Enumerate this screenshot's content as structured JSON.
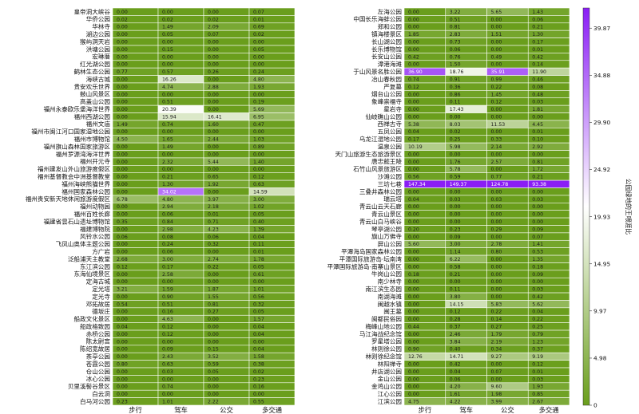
{
  "chart_data": {
    "type": "heatmap",
    "columns": [
      "步行",
      "驾车",
      "公交",
      "多交通"
    ],
    "colorbar": {
      "label": "公园绿地的王喂涯比",
      "ticks": [
        "0",
        "4.98",
        "9.97",
        "14.95",
        "19.93",
        "24.92",
        "29.90",
        "34.88",
        "39.87"
      ],
      "tick_values": [
        0,
        4.98,
        9.97,
        14.95,
        19.93,
        24.92,
        29.9,
        34.88,
        39.87
      ],
      "range": [
        0,
        42
      ],
      "colors": [
        "#6a9e1c",
        "#ffffff",
        "#8a1ef5"
      ]
    },
    "panels": [
      {
        "rows": [
          {
            "name": "皇帝洞大峡谷",
            "values": [
              "0.00",
              "0.00",
              "0.00",
              "0.07"
            ]
          },
          {
            "name": "华侨公园",
            "values": [
              "0.02",
              "0.02",
              "0.02",
              "0.01"
            ]
          },
          {
            "name": "华林寺",
            "values": [
              "0.00",
              "1.49",
              "2.09",
              "0.69"
            ]
          },
          {
            "name": "湖边公园",
            "values": [
              "0.00",
              "0.05",
              "0.07",
              "0.02"
            ]
          },
          {
            "name": "猴屿洞天岩",
            "values": [
              "0.00",
              "0.00",
              "0.00",
              "0.00"
            ]
          },
          {
            "name": "洪塘公园",
            "values": [
              "0.00",
              "0.15",
              "0.00",
              "0.05"
            ]
          },
          {
            "name": "宏琳厝",
            "values": [
              "0.00",
              "0.00",
              "0.00",
              "0.00"
            ]
          },
          {
            "name": "红光湖公园",
            "values": [
              "0.00",
              "0.00",
              "0.00",
              "0.00"
            ]
          },
          {
            "name": "鹤林生态公园",
            "values": [
              "0.77",
              "0.57",
              "0.26",
              "0.24"
            ]
          },
          {
            "name": "海峡古城",
            "values": [
              "0.00",
              "16.26",
              "0.00",
              "4.80"
            ]
          },
          {
            "name": "贵安欢乐世界",
            "values": [
              "0.00",
              "4.74",
              "2.88",
              "1.93"
            ]
          },
          {
            "name": "鼓山风景区",
            "values": [
              "0.00",
              "0.00",
              "0.00",
              "0.00"
            ]
          },
          {
            "name": "高盖山公园",
            "values": [
              "0.00",
              "0.51",
              "0.00",
              "0.19"
            ]
          },
          {
            "name": "福州永泰欧乐堡海洋世界",
            "values": [
              "0.00",
              "20.39",
              "0.00",
              "5.69"
            ]
          },
          {
            "name": "福州西湖公园",
            "values": [
              "0.00",
              "15.94",
              "16.41",
              "6.95"
            ]
          },
          {
            "name": "福州文庙",
            "values": [
              "1.49",
              "0.74",
              "1.60",
              "0.47"
            ]
          },
          {
            "name": "福州市闽江河口国家湿地公园",
            "values": [
              "0.00",
              "0.00",
              "0.00",
              "0.00"
            ]
          },
          {
            "name": "福州市博物馆",
            "values": [
              "4.50",
              "1.65",
              "2.44",
              "1.03"
            ]
          },
          {
            "name": "福州旗山森林国家旅游区",
            "values": [
              "0.00",
              "1.49",
              "0.00",
              "0.89"
            ]
          },
          {
            "name": "福州罗源湾海洋世界",
            "values": [
              "0.00",
              "0.00",
              "0.00",
              "0.00"
            ]
          },
          {
            "name": "福州开元寺",
            "values": [
              "0.00",
              "2.32",
              "5.44",
              "1.40"
            ]
          },
          {
            "name": "福州建发山外山旅游度假区",
            "values": [
              "0.00",
              "0.00",
              "0.00",
              "0.00"
            ]
          },
          {
            "name": "福州基督教会中洲基督教堂",
            "values": [
              "0.00",
              "0.21",
              "0.65",
              "0.12"
            ]
          },
          {
            "name": "福州海峡熊猫世界",
            "values": [
              "0.00",
              "1.30",
              "1.92",
              "0.63"
            ]
          },
          {
            "name": "福州国家森林公园",
            "values": [
              "0.00",
              "34.02",
              "0.00",
              "14.59"
            ]
          },
          {
            "name": "福州贵安新天地休闲旅游度假区",
            "values": [
              "6.78",
              "4.80",
              "3.97",
              "3.00"
            ]
          },
          {
            "name": "福州动物园",
            "values": [
              "0.00",
              "2.94",
              "2.18",
              "1.02"
            ]
          },
          {
            "name": "福州百姓长廊",
            "values": [
              "0.00",
              "0.06",
              "0.01",
              "0.05"
            ]
          },
          {
            "name": "福建省昙石山遗址博物馆",
            "values": [
              "0.35",
              "0.84",
              "0.71",
              "0.40"
            ]
          },
          {
            "name": "福建博物院",
            "values": [
              "0.00",
              "2.98",
              "4.23",
              "1.39"
            ]
          },
          {
            "name": "风铃水公园",
            "values": [
              "0.06",
              "0.08",
              "0.06",
              "0.04"
            ]
          },
          {
            "name": "飞凤山奥体主题公园",
            "values": [
              "0.00",
              "0.24",
              "0.32",
              "0.11"
            ]
          },
          {
            "name": "方广岩",
            "values": [
              "0.00",
              "0.06",
              "0.00",
              "0.01"
            ]
          },
          {
            "name": "泛船浦天主教堂",
            "values": [
              "2.68",
              "3.00",
              "2.74",
              "1.78"
            ]
          },
          {
            "name": "东江滨公园",
            "values": [
              "0.12",
              "0.17",
              "0.22",
              "0.05"
            ]
          },
          {
            "name": "东海仙境景区",
            "values": [
              "0.00",
              "2.58",
              "0.00",
              "0.61"
            ]
          },
          {
            "name": "定海古城",
            "values": [
              "0.00",
              "0.00",
              "0.00",
              "0.00"
            ]
          },
          {
            "name": "定光塔",
            "values": [
              "3.21",
              "1.59",
              "1.87",
              "1.01"
            ]
          },
          {
            "name": "定光寺",
            "values": [
              "0.00",
              "0.90",
              "1.55",
              "0.56"
            ]
          },
          {
            "name": "邓拓故居",
            "values": [
              "0.54",
              "0.51",
              "0.81",
              "0.32"
            ]
          },
          {
            "name": "德坂庄",
            "values": [
              "0.00",
              "0.16",
              "0.27",
              "0.05"
            ]
          },
          {
            "name": "船政文化景区",
            "values": [
              "0.00",
              "4.63",
              "0.00",
              "1.57"
            ]
          },
          {
            "name": "船政格致园",
            "values": [
              "0.04",
              "0.12",
              "0.00",
              "0.04"
            ]
          },
          {
            "name": "赤桥公园",
            "values": [
              "0.00",
              "0.12",
              "0.00",
              "0.04"
            ]
          },
          {
            "name": "陈太尉宫",
            "values": [
              "0.00",
              "0.00",
              "0.00",
              "0.00"
            ]
          },
          {
            "name": "陈绍宽故居",
            "values": [
              "0.00",
              "0.09",
              "0.15",
              "0.04"
            ]
          },
          {
            "name": "茶亭公园",
            "values": [
              "0.00",
              "2.43",
              "3.52",
              "1.58"
            ]
          },
          {
            "name": "苍霞公园",
            "values": [
              "0.80",
              "0.63",
              "0.59",
              "0.38"
            ]
          },
          {
            "name": "仓山公园",
            "values": [
              "0.00",
              "0.03",
              "0.05",
              "0.02"
            ]
          },
          {
            "name": "冰心公园",
            "values": [
              "0.00",
              "0.00",
              "0.00",
              "0.23"
            ]
          },
          {
            "name": "贝里溪髻谷景区",
            "values": [
              "0.00",
              "0.74",
              "0.00",
              "0.16"
            ]
          },
          {
            "name": "白云洞",
            "values": [
              "0.00",
              "0.00",
              "0.00",
              "0.00"
            ]
          },
          {
            "name": "白马河公园",
            "values": [
              "0.23",
              "1.01",
              "2.22",
              "0.55"
            ]
          }
        ]
      },
      {
        "rows": [
          {
            "name": "左海公园",
            "values": [
              "0.00",
              "3.22",
              "5.65",
              "1.43"
            ]
          },
          {
            "name": "中国长乐海蚌公园",
            "values": [
              "0.00",
              "0.51",
              "0.00",
              "0.06"
            ]
          },
          {
            "name": "郑和公园",
            "values": [
              "0.00",
              "0.81",
              "0.00",
              "0.21"
            ]
          },
          {
            "name": "镇海楼景区",
            "values": [
              "1.85",
              "2.83",
              "1.51",
              "1.30"
            ]
          },
          {
            "name": "长山湖公园",
            "values": [
              "0.00",
              "0.73",
              "0.00",
              "0.17"
            ]
          },
          {
            "name": "长乐博物馆",
            "values": [
              "0.00",
              "0.06",
              "0.00",
              "0.01"
            ]
          },
          {
            "name": "长安山公园",
            "values": [
              "0.42",
              "0.76",
              "0.49",
              "0.42"
            ]
          },
          {
            "name": "漳港海滩",
            "values": [
              "0.00",
              "1.50",
              "0.00",
              "0.14"
            ]
          },
          {
            "name": "于山风景名胜公园",
            "values": [
              "36.90",
              "18.76",
              "35.91",
              "11.90"
            ]
          },
          {
            "name": "冶山春秋园",
            "values": [
              "0.74",
              "0.91",
              "0.99",
              "0.46"
            ]
          },
          {
            "name": "严复墓",
            "values": [
              "0.12",
              "0.36",
              "0.22",
              "0.08"
            ]
          },
          {
            "name": "烟台山公园",
            "values": [
              "0.00",
              "0.86",
              "1.45",
              "0.48"
            ]
          },
          {
            "name": "象峰崇福寺",
            "values": [
              "0.00",
              "0.11",
              "0.12",
              "0.03"
            ]
          },
          {
            "name": "星岩寺",
            "values": [
              "0.00",
              "17.43",
              "0.00",
              "1.81"
            ]
          },
          {
            "name": "仙岐礁山公园",
            "values": [
              "0.00",
              "0.00",
              "0.00",
              "0.00"
            ]
          },
          {
            "name": "西禅古寺",
            "values": [
              "5.38",
              "8.03",
              "11.53",
              "4.45"
            ]
          },
          {
            "name": "五凤公园",
            "values": [
              "0.04",
              "0.02",
              "0.00",
              "0.01"
            ]
          },
          {
            "name": "乌龙江湿地公园",
            "values": [
              "0.17",
              "0.25",
              "0.33",
              "0.10"
            ]
          },
          {
            "name": "温泉公园",
            "values": [
              "10.19",
              "5.98",
              "2.14",
              "2.92"
            ]
          },
          {
            "name": "天门山旅游生态旅游景区",
            "values": [
              "0.00",
              "0.00",
              "0.00",
              "0.00"
            ]
          },
          {
            "name": "唐忠懿王陵",
            "values": [
              "0.00",
              "1.76",
              "2.57",
              "0.81"
            ]
          },
          {
            "name": "石竹山风景旅游区",
            "values": [
              "0.00",
              "5.78",
              "0.00",
              "1.72"
            ]
          },
          {
            "name": "沙滩公园",
            "values": [
              "0.56",
              "0.59",
              "0.77",
              "0.21"
            ]
          },
          {
            "name": "三坊七巷",
            "values": [
              "147.34",
              "149.37",
              "124.78",
              "93.38"
            ]
          },
          {
            "name": "三叠井森林公园",
            "values": [
              "0.00",
              "0.00",
              "0.00",
              "0.00"
            ]
          },
          {
            "name": "瑞云塔",
            "values": [
              "0.04",
              "0.03",
              "0.03",
              "0.03"
            ]
          },
          {
            "name": "青云山云天石廊",
            "values": [
              "0.00",
              "0.00",
              "0.00",
              "0.00"
            ]
          },
          {
            "name": "青云山景区",
            "values": [
              "0.00",
              "0.00",
              "0.00",
              "0.00"
            ]
          },
          {
            "name": "青云山白马峡谷",
            "values": [
              "0.00",
              "0.00",
              "0.00",
              "0.00"
            ]
          },
          {
            "name": "琴亭湖公园",
            "values": [
              "0.20",
              "0.23",
              "0.29",
              "0.09"
            ]
          },
          {
            "name": "旗山万佛寺",
            "values": [
              "0.00",
              "0.09",
              "0.00",
              "0.07"
            ]
          },
          {
            "name": "屏山公园",
            "values": [
              "5.60",
              "3.00",
              "2.78",
              "1.41"
            ]
          },
          {
            "name": "平潭海岛国家森林公园",
            "values": [
              "0.00",
              "1.14",
              "0.80",
              "0.53"
            ]
          },
          {
            "name": "平潭国际旅游岛·坛南湾",
            "values": [
              "0.00",
              "6.22",
              "0.00",
              "1.35"
            ]
          },
          {
            "name": "平潭国际旅游岛·南寨山景区",
            "values": [
              "0.00",
              "0.58",
              "0.00",
              "0.18"
            ]
          },
          {
            "name": "牛岗山公园",
            "values": [
              "0.18",
              "0.21",
              "0.00",
              "0.09"
            ]
          },
          {
            "name": "南少林寺",
            "values": [
              "0.00",
              "0.00",
              "0.00",
              "0.00"
            ]
          },
          {
            "name": "南江滨生态园",
            "values": [
              "0.00",
              "0.11",
              "0.00",
              "0.03"
            ]
          },
          {
            "name": "南湖海滩",
            "values": [
              "0.00",
              "3.80",
              "0.00",
              "0.42"
            ]
          },
          {
            "name": "闽越水镇",
            "values": [
              "0.00",
              "14.15",
              "5.83",
              "5.62"
            ]
          },
          {
            "name": "闽王墓",
            "values": [
              "0.00",
              "0.12",
              "0.22",
              "0.04"
            ]
          },
          {
            "name": "闽都民俗园",
            "values": [
              "0.00",
              "0.28",
              "0.14",
              "0.22"
            ]
          },
          {
            "name": "梅峰山地公园",
            "values": [
              "0.44",
              "0.37",
              "0.27",
              "0.25"
            ]
          },
          {
            "name": "马江海战纪念馆",
            "values": [
              "0.00",
              "2.46",
              "1.79",
              "0.79"
            ]
          },
          {
            "name": "罗星塔公园",
            "values": [
              "0.00",
              "3.84",
              "2.19",
              "1.23"
            ]
          },
          {
            "name": "林则徐公园",
            "values": [
              "0.90",
              "0.40",
              "0.34",
              "0.37"
            ]
          },
          {
            "name": "林则徐纪念馆",
            "values": [
              "12.76",
              "14.71",
              "9.27",
              "9.19"
            ]
          },
          {
            "name": "林阳禅寺",
            "values": [
              "0.00",
              "0.42",
              "0.00",
              "0.12"
            ]
          },
          {
            "name": "井店湖公园",
            "values": [
              "0.00",
              "0.04",
              "0.07",
              "0.01"
            ]
          },
          {
            "name": "金山公园",
            "values": [
              "0.00",
              "0.06",
              "0.00",
              "0.03"
            ]
          },
          {
            "name": "金鸡山公园",
            "values": [
              "0.00",
              "4.20",
              "9.60",
              "1.93"
            ]
          },
          {
            "name": "江心公园",
            "values": [
              "0.00",
              "1.61",
              "1.98",
              "0.85"
            ]
          },
          {
            "name": "江滨公园",
            "values": [
              "4.75",
              "4.22",
              "3.99",
              "2.67"
            ]
          }
        ]
      }
    ]
  }
}
